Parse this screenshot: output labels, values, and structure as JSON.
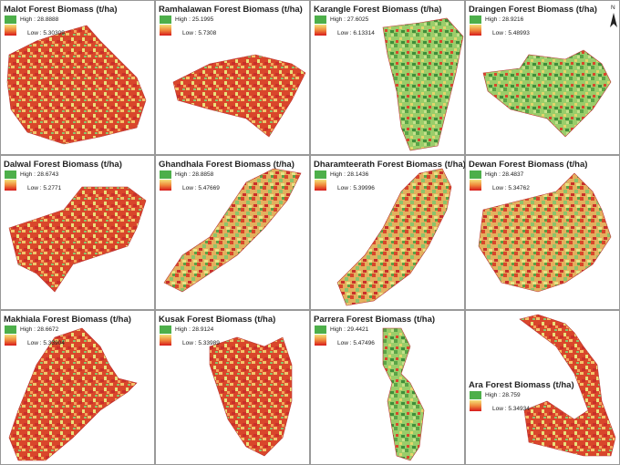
{
  "panels": [
    {
      "title": "Malot Forest Biomass (t/ha)",
      "high": "High : 28.8888",
      "low": "Low : 5.30309"
    },
    {
      "title": "Ramhalawan Forest Biomass (t/ha)",
      "high": "High : 25.1995",
      "low": "Low : 5.7308"
    },
    {
      "title": "Karangle Forest Biomass (t/ha)",
      "high": "High : 27.6025",
      "low": "Low : 6.13314"
    },
    {
      "title": "Draingen Forest Biomass (t/ha)",
      "high": "High : 28.9216",
      "low": "Low : 5.48993"
    },
    {
      "title": "Dalwal Forest Biomass (t/ha)",
      "high": "High : 28.6743",
      "low": "Low : 5.2771"
    },
    {
      "title": "Ghandhala Forest Biomass (t/ha)",
      "high": "High : 28.8858",
      "low": "Low : 5.47669"
    },
    {
      "title": "Dharamteerath Forest Biomass (t/ha)",
      "high": "High : 28.1436",
      "low": "Low : 5.39996"
    },
    {
      "title": "Dewan Forest Biomass (t/ha)",
      "high": "High : 28.4837",
      "low": "Low : 5.34762"
    },
    {
      "title": "Makhiala Forest Biomass (t/ha)",
      "high": "High : 28.6672",
      "low": "Low : 5.33904"
    },
    {
      "title": "Kusak Forest Biomass (t/ha)",
      "high": "High : 28.9124",
      "low": "Low : 5.33989"
    },
    {
      "title": "Parrera Forest Biomass (t/ha)",
      "high": "High : 29.4421",
      "low": "Low : 5.47496"
    },
    {
      "title": "Ara Forest Biomass (t/ha)",
      "high": "High : 28.759",
      "low": "Low : 5.34934"
    }
  ],
  "north": "N"
}
